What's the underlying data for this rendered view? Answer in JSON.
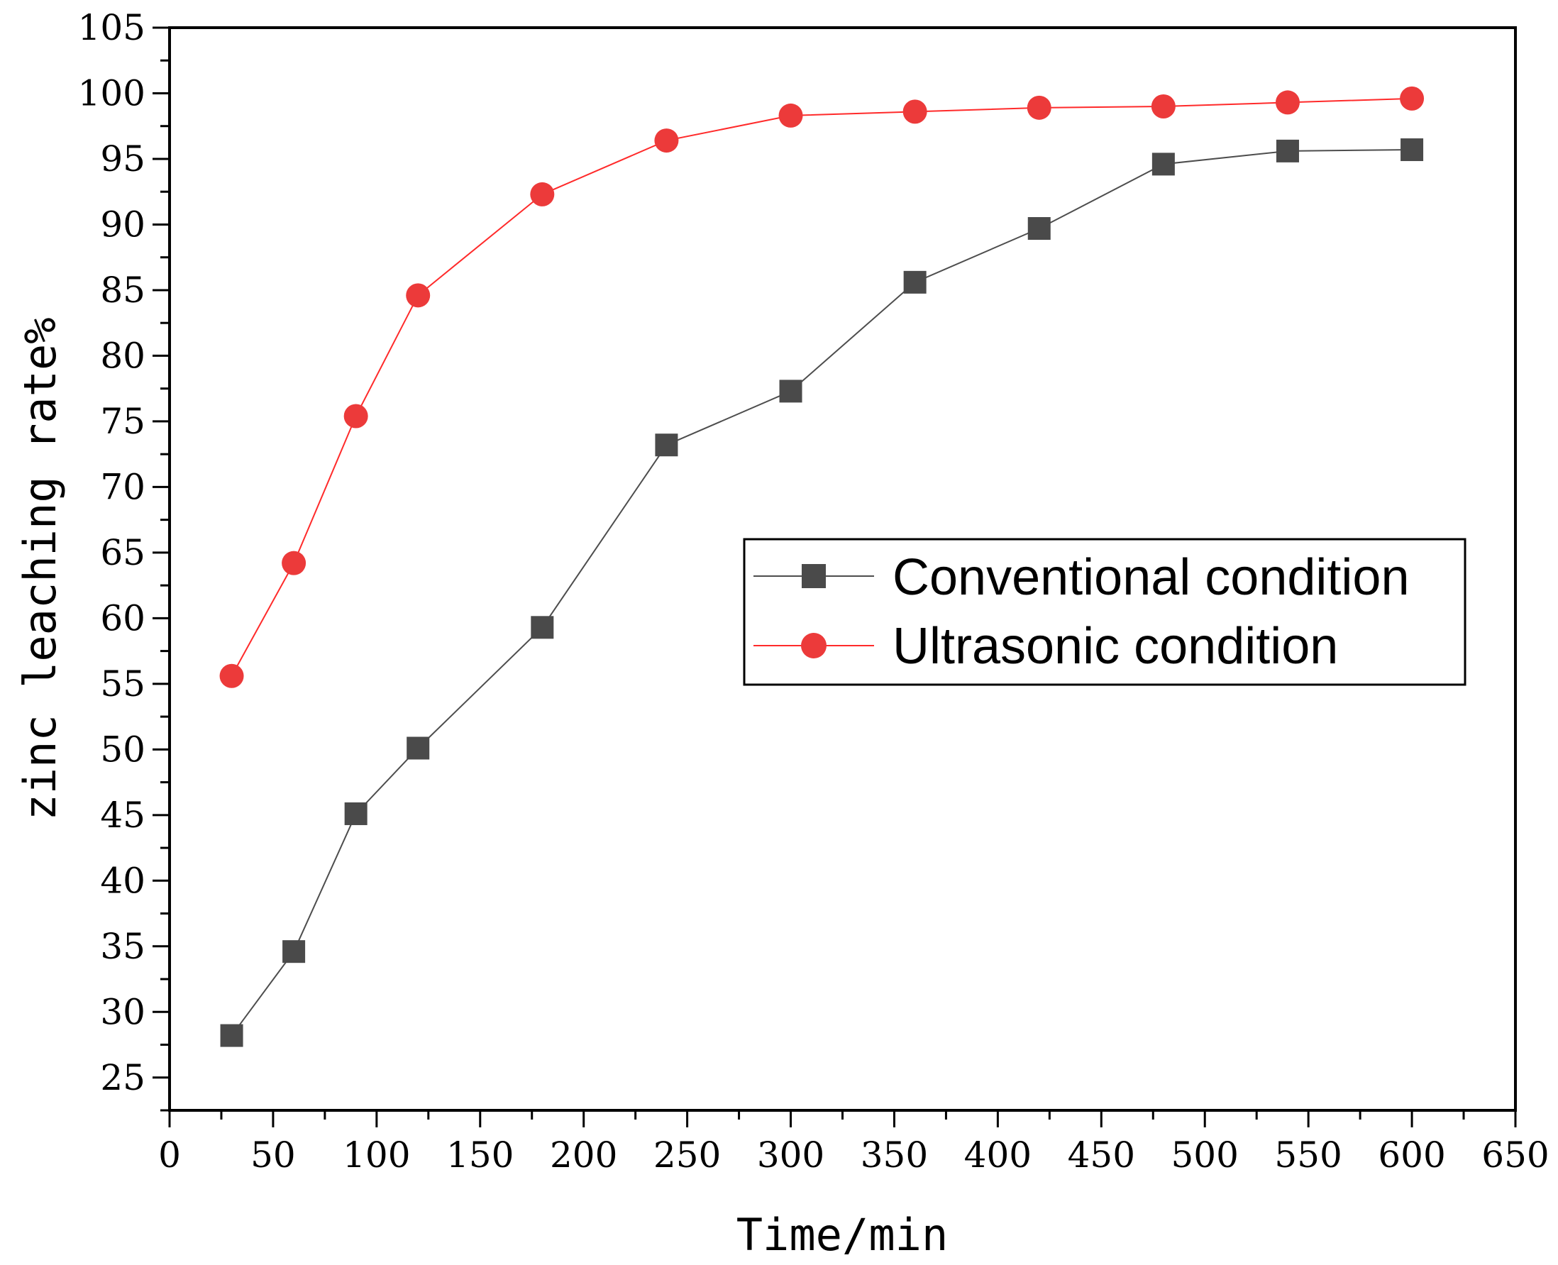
{
  "chart_data": {
    "type": "line",
    "title": "",
    "xlabel": "Time/min",
    "ylabel": "zinc leaching rate%",
    "xlim": [
      0,
      650
    ],
    "ylim": [
      22.5,
      105
    ],
    "x_ticks": [
      "0",
      "50",
      "100",
      "150",
      "200",
      "250",
      "300",
      "350",
      "400",
      "450",
      "500",
      "550",
      "600",
      "650"
    ],
    "y_ticks": [
      "25",
      "30",
      "35",
      "40",
      "45",
      "50",
      "55",
      "60",
      "65",
      "70",
      "75",
      "80",
      "85",
      "90",
      "95",
      "100",
      "105"
    ],
    "legend_position": "center-right",
    "series": [
      {
        "name": "Conventional condition",
        "marker": "square",
        "line_color": "#4d4d4d",
        "marker_color": "#4a4a4a",
        "x": [
          30,
          60,
          90,
          120,
          180,
          240,
          300,
          360,
          420,
          480,
          540,
          600
        ],
        "y": [
          28.2,
          34.6,
          45.1,
          50.1,
          59.3,
          73.2,
          77.3,
          85.6,
          89.7,
          94.6,
          95.6,
          95.7
        ]
      },
      {
        "name": "Ultrasonic condition",
        "marker": "circle",
        "line_color": "#ff2a2a",
        "marker_color": "#ec3a3a",
        "x": [
          30,
          60,
          90,
          120,
          180,
          240,
          300,
          360,
          420,
          480,
          540,
          600
        ],
        "y": [
          55.6,
          64.2,
          75.4,
          84.6,
          92.3,
          96.4,
          98.3,
          98.6,
          98.9,
          99.0,
          99.3,
          99.6
        ]
      }
    ]
  }
}
